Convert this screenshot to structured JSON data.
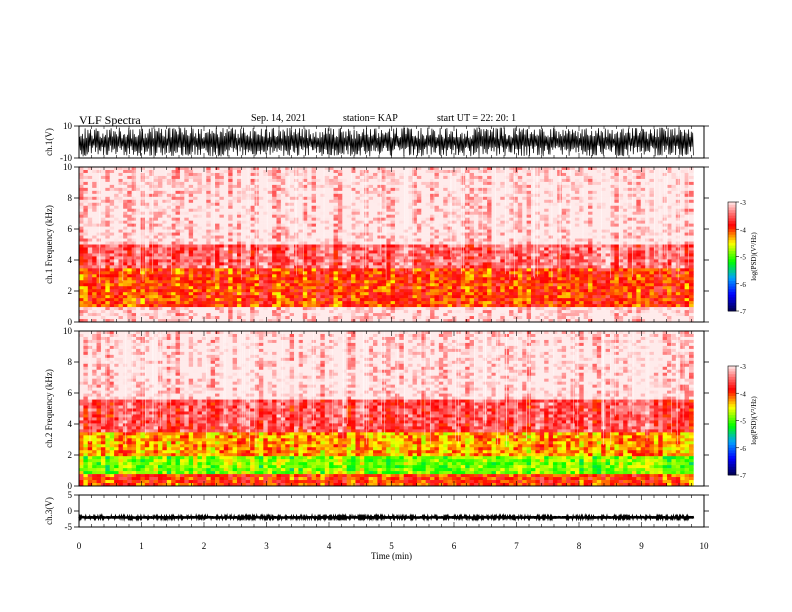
{
  "header": {
    "title": "VLF Spectra",
    "date": "Sep. 14, 2021",
    "station": "station= KAP",
    "start": "start  UT =   22: 20: 1"
  },
  "chart_data": [
    {
      "type": "line",
      "panel": "ch1-waveform",
      "ylabel": "ch.1(V)",
      "ylim": [
        -10,
        10
      ],
      "yticks": [
        "10",
        "-10"
      ],
      "x_range_min": [
        0,
        9.83
      ],
      "note_values": "dense oscillation saturating between about -8 and 8 V across the record"
    },
    {
      "type": "heatmap",
      "panel": "ch1-spectrogram",
      "ylabel": "ch.1 Frequency (kHz)",
      "ylim": [
        0,
        10
      ],
      "yticks": [
        "0",
        "2",
        "4",
        "6",
        "8",
        "10"
      ],
      "colorbar_label": "log(PSD)(V²/Hz)",
      "colorbar_ticks": [
        "-3",
        "-4",
        "-5",
        "-6",
        "-7"
      ],
      "colorbar_range": [
        -7,
        -3
      ],
      "bands": [
        {
          "freq_range_khz": [
            0,
            0.9
          ],
          "level": -3.0
        },
        {
          "freq_range_khz": [
            0.9,
            3.5
          ],
          "level": -4.0
        },
        {
          "freq_range_khz": [
            3.5,
            5.0
          ],
          "level": -3.5
        },
        {
          "freq_range_khz": [
            5.0,
            10.0
          ],
          "level": -3.0
        }
      ]
    },
    {
      "type": "heatmap",
      "panel": "ch2-spectrogram",
      "ylabel": "ch.2 Frequency (kHz)",
      "ylim": [
        0,
        10
      ],
      "yticks": [
        "0",
        "2",
        "4",
        "6",
        "8",
        "10"
      ],
      "colorbar_label": "log(PSD)(V²/Hz)",
      "colorbar_ticks": [
        "-3",
        "-4",
        "-5",
        "-6",
        "-7"
      ],
      "colorbar_range": [
        -7,
        -3
      ],
      "bands": [
        {
          "freq_range_khz": [
            0,
            0.7
          ],
          "level": -4.0
        },
        {
          "freq_range_khz": [
            0.7,
            2.0
          ],
          "level": -4.9
        },
        {
          "freq_range_khz": [
            2.0,
            3.5
          ],
          "level": -4.3
        },
        {
          "freq_range_khz": [
            3.5,
            5.5
          ],
          "level": -3.6
        },
        {
          "freq_range_khz": [
            5.5,
            10.0
          ],
          "level": -3.0
        }
      ]
    },
    {
      "type": "line",
      "panel": "ch3-waveform",
      "ylabel": "ch.3(V)",
      "ylim": [
        -5,
        5
      ],
      "yticks": [
        "5",
        "0",
        "-5"
      ],
      "x_range_min": [
        0,
        9.83
      ],
      "note_values": "narrow band near -2 V"
    }
  ],
  "xaxis": {
    "label": "Time (min)",
    "range": [
      0,
      10
    ],
    "ticks": [
      "0",
      "1",
      "2",
      "3",
      "4",
      "5",
      "6",
      "7",
      "8",
      "9",
      "10"
    ]
  },
  "colors": {
    "spectro_high": "#ff0000",
    "spectro_mid": "#ffff00",
    "spectro_low": "#00ff00",
    "spectro_floor": "#0000ff"
  }
}
